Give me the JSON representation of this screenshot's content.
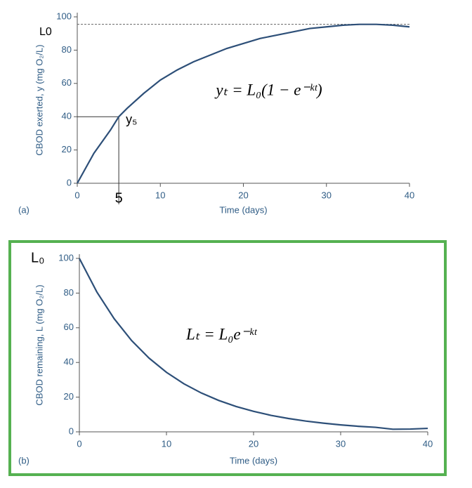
{
  "chart_data": [
    {
      "type": "line",
      "panel_label": "(a)",
      "ylabel": "CBOD exerted, y (mg O₂/L)",
      "xlabel": "Time (days)",
      "equation": "yₜ = L₀(1 − e⁻ᵏᵗ)",
      "x": [
        0,
        2,
        4,
        5,
        6,
        8,
        10,
        12,
        14,
        16,
        18,
        20,
        22,
        24,
        26,
        28,
        30,
        32,
        34,
        36,
        38,
        40
      ],
      "values": [
        0,
        18,
        32,
        40,
        45,
        54,
        62,
        68,
        73,
        77,
        81,
        84,
        87,
        89,
        91,
        93,
        94,
        95,
        95.5,
        95.5,
        95,
        94
      ],
      "color": "#2d4f78",
      "reference_line": {
        "value": 95.5,
        "label": "L0"
      },
      "marker": {
        "x": 5,
        "y": 40,
        "label": "y₅"
      },
      "xlim": [
        0,
        40
      ],
      "ylim": [
        0,
        100
      ],
      "xticks": [
        0,
        10,
        20,
        30,
        40
      ],
      "yticks": [
        0,
        20,
        40,
        60,
        80,
        100
      ]
    },
    {
      "type": "line",
      "panel_label": "(b)",
      "ylabel": "CBOD remaining, L (mg O₂/L)",
      "xlabel": "Time (days)",
      "equation": "Lₜ = L₀e⁻ᵏᵗ",
      "start_label": "L₀",
      "x": [
        0,
        2,
        4,
        6,
        8,
        10,
        12,
        14,
        16,
        18,
        20,
        22,
        24,
        26,
        28,
        30,
        32,
        34,
        36,
        38,
        40
      ],
      "values": [
        100,
        80.7,
        65.2,
        52.6,
        42.5,
        34.3,
        27.7,
        22.4,
        18.1,
        14.6,
        11.8,
        9.5,
        7.7,
        6.2,
        5,
        4,
        3.2,
        2.6,
        1.5,
        1.6,
        2
      ],
      "color": "#2d4f78",
      "xlim": [
        0,
        40
      ],
      "ylim": [
        0,
        100
      ],
      "xticks": [
        0,
        10,
        20,
        30,
        40
      ],
      "yticks": [
        0,
        20,
        40,
        60,
        80,
        100
      ]
    }
  ]
}
